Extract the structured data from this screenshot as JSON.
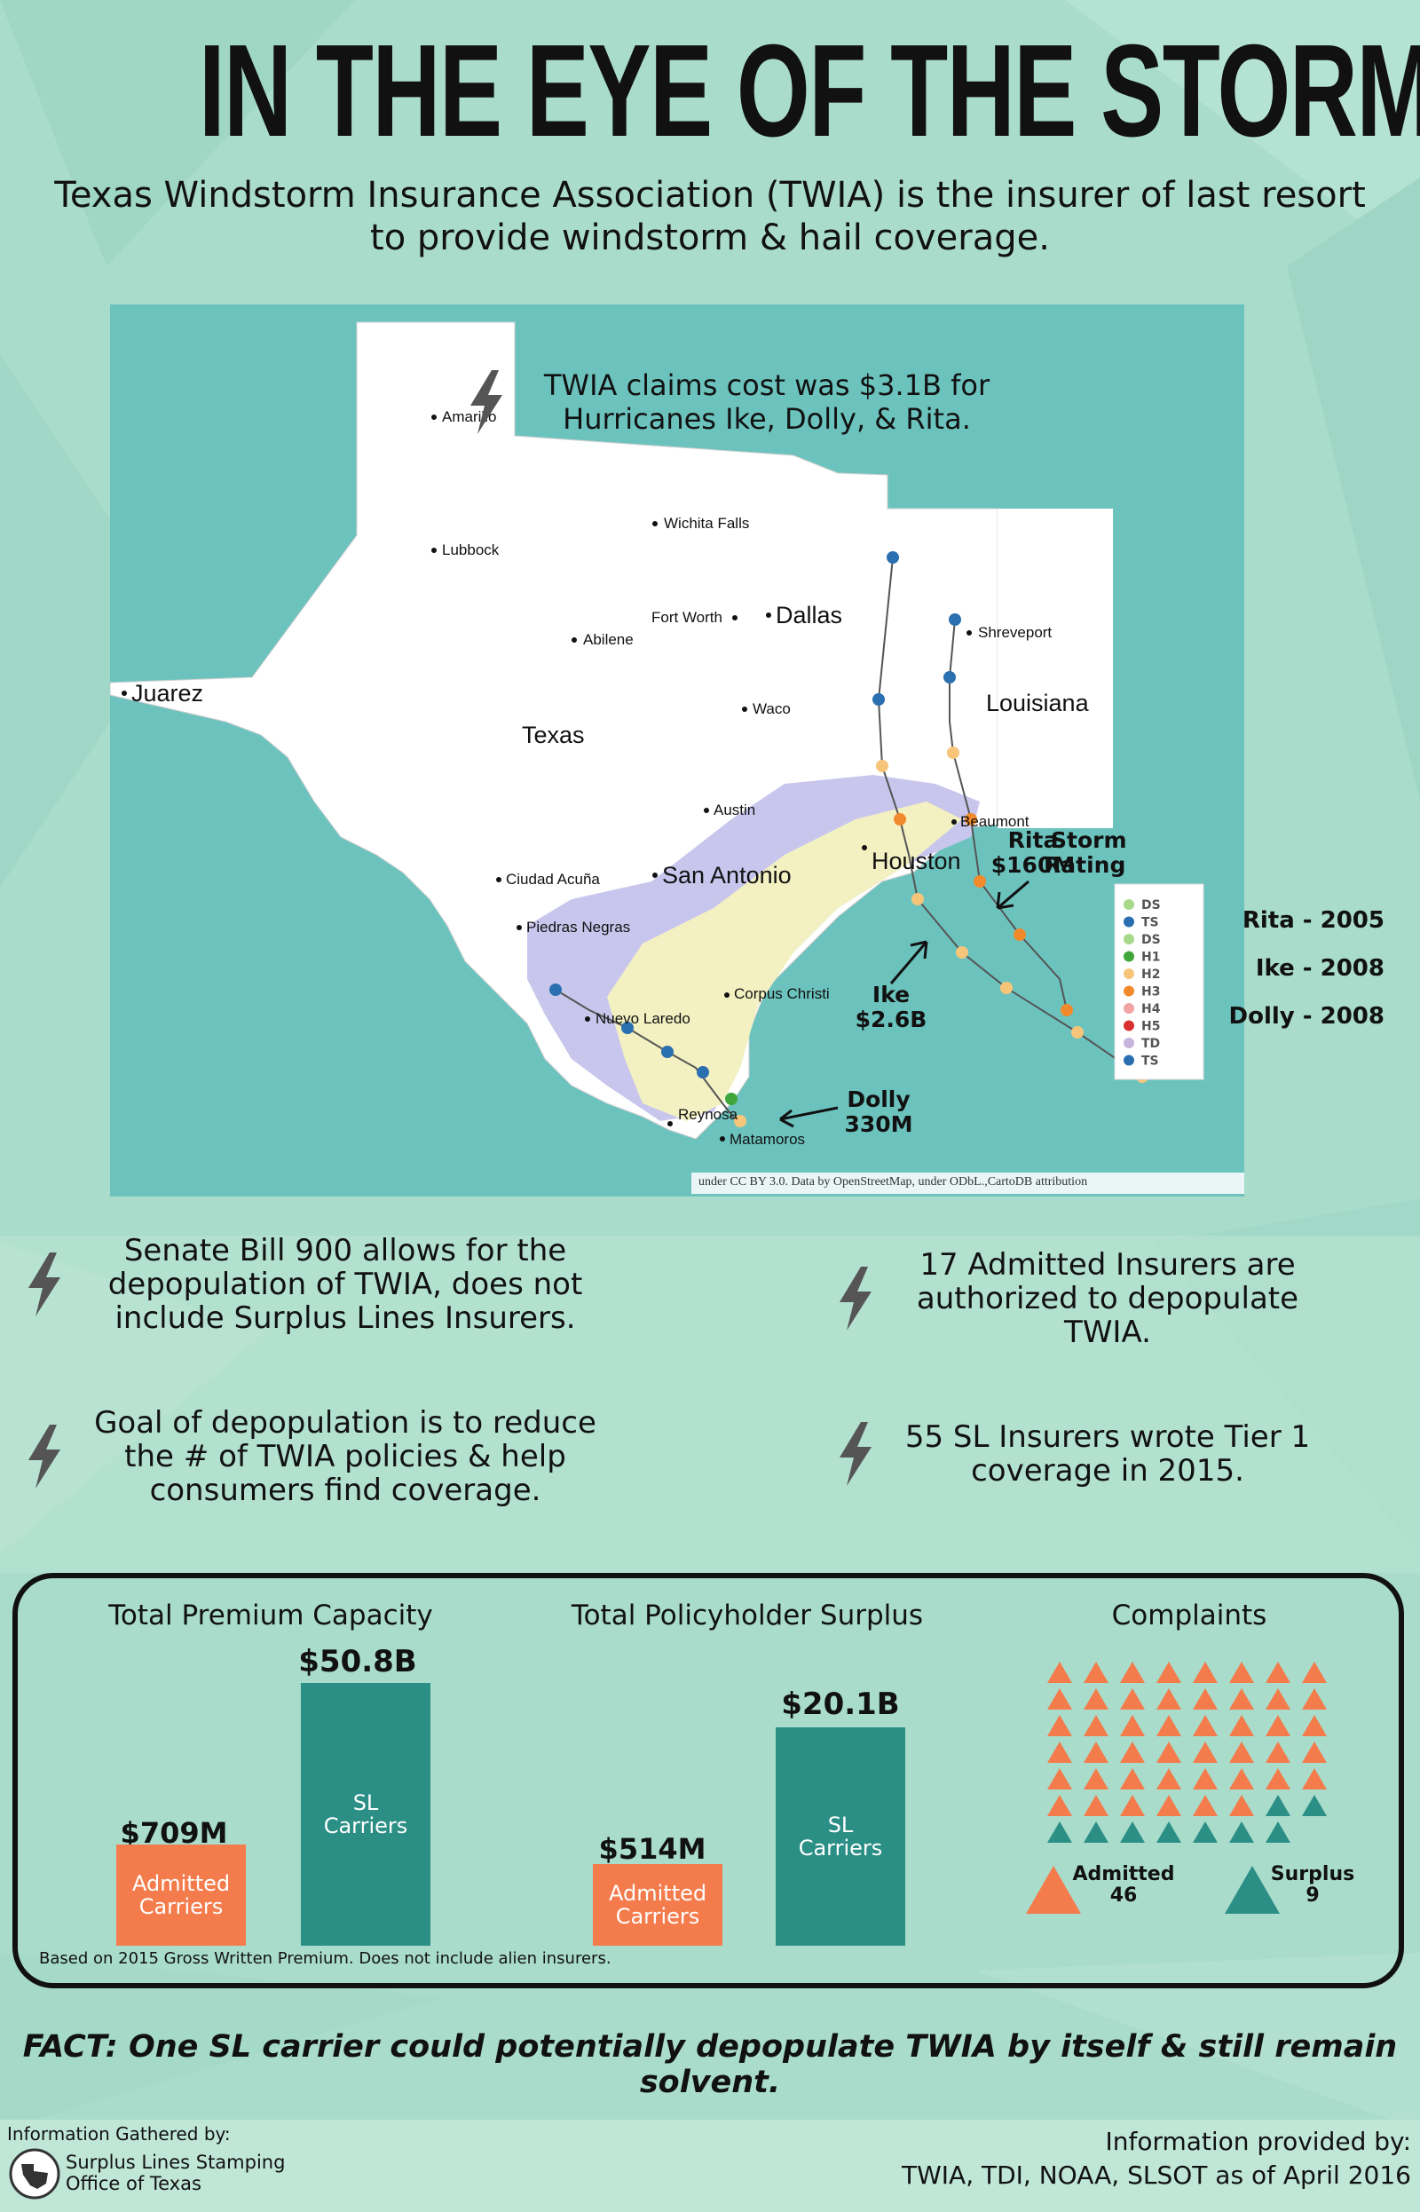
{
  "title": "IN THE EYE OF THE STORM",
  "subtitle": "Texas Windstorm Insurance Association (TWIA) is the insurer of last resort to provide windstorm & hail coverage.",
  "map": {
    "claims_text": "TWIA claims cost was $3.1B for Hurricanes Ike, Dolly, & Rita.",
    "cities": [
      "Amarillo",
      "Lubbock",
      "Wichita Falls",
      "Fort Worth",
      "Dallas",
      "Abilene",
      "Shreveport",
      "Juarez",
      "Waco",
      "Louisiana",
      "Texas",
      "Austin",
      "Beaumont",
      "Ciudad Acuña",
      "San Antonio",
      "Houston",
      "Piedras Negras",
      "Nuevo Laredo",
      "Corpus Christi",
      "Reynosa",
      "Matamoros"
    ],
    "storm_labels": {
      "rita": {
        "name": "Rita",
        "amount": "$160M"
      },
      "ike": {
        "name": "Ike",
        "amount": "$2.6B"
      },
      "dolly": {
        "name": "Dolly",
        "amount": "330M"
      }
    },
    "legend_title": "Storm Rating",
    "legend": [
      {
        "code": "DS",
        "color": "#a7d98a"
      },
      {
        "code": "TS",
        "color": "#2a6fb0"
      },
      {
        "code": "DS",
        "color": "#a7d98a"
      },
      {
        "code": "H1",
        "color": "#3fa63a"
      },
      {
        "code": "H2",
        "color": "#f6c57a"
      },
      {
        "code": "H3",
        "color": "#f18a2c"
      },
      {
        "code": "H4",
        "color": "#f2a3a3"
      },
      {
        "code": "H5",
        "color": "#d93030"
      },
      {
        "code": "TD",
        "color": "#c7b4dc"
      },
      {
        "code": "TS",
        "color": "#2a6fb0"
      }
    ],
    "years": [
      "Rita - 2005",
      "Ike - 2008",
      "Dolly - 2008"
    ],
    "attribution": "under CC BY 3.0. Data by OpenStreetMap, under ODbL.,CartoDB attribution"
  },
  "points": {
    "p1": "Senate Bill 900 allows for the depopulation of TWIA, does not include Surplus Lines Insurers.",
    "p2": "17 Admitted Insurers are authorized to depopulate TWIA.",
    "p3": "Goal of depopulation is to reduce the # of TWIA policies & help consumers find coverage.",
    "p4": "55 SL Insurers wrote Tier 1 coverage in 2015."
  },
  "stats": {
    "premium": {
      "title": "Total Premium Capacity",
      "admitted_val": "$709M",
      "admitted_label": "Admitted Carriers",
      "sl_val": "$50.8B",
      "sl_label": "SL Carriers"
    },
    "surplus": {
      "title": "Total Policyholder Surplus",
      "admitted_val": "$514M",
      "admitted_label": "Admitted Carriers",
      "sl_val": "$20.1B",
      "sl_label": "SL Carriers"
    },
    "complaints": {
      "title": "Complaints",
      "admitted_label": "Admitted",
      "admitted_count": "46",
      "surplus_label": "Surplus",
      "surplus_count": "9"
    },
    "note": "Based on 2015 Gross Written Premium.  Does not include alien insurers."
  },
  "fact": "FACT:  One SL carrier could potentially depopulate TWIA by itself & still remain solvent.",
  "footer": {
    "gathered_by": "Information Gathered by:",
    "org_line1": "Surplus Lines Stamping",
    "org_line2": "Office of Texas",
    "provided_by": "Information provided by:",
    "sources": "TWIA, TDI, NOAA, SLSOT as of April 2016"
  },
  "colors": {
    "admitted": "#f47c4c",
    "surplus": "#2b8f86",
    "bg": "#a9dccb"
  }
}
